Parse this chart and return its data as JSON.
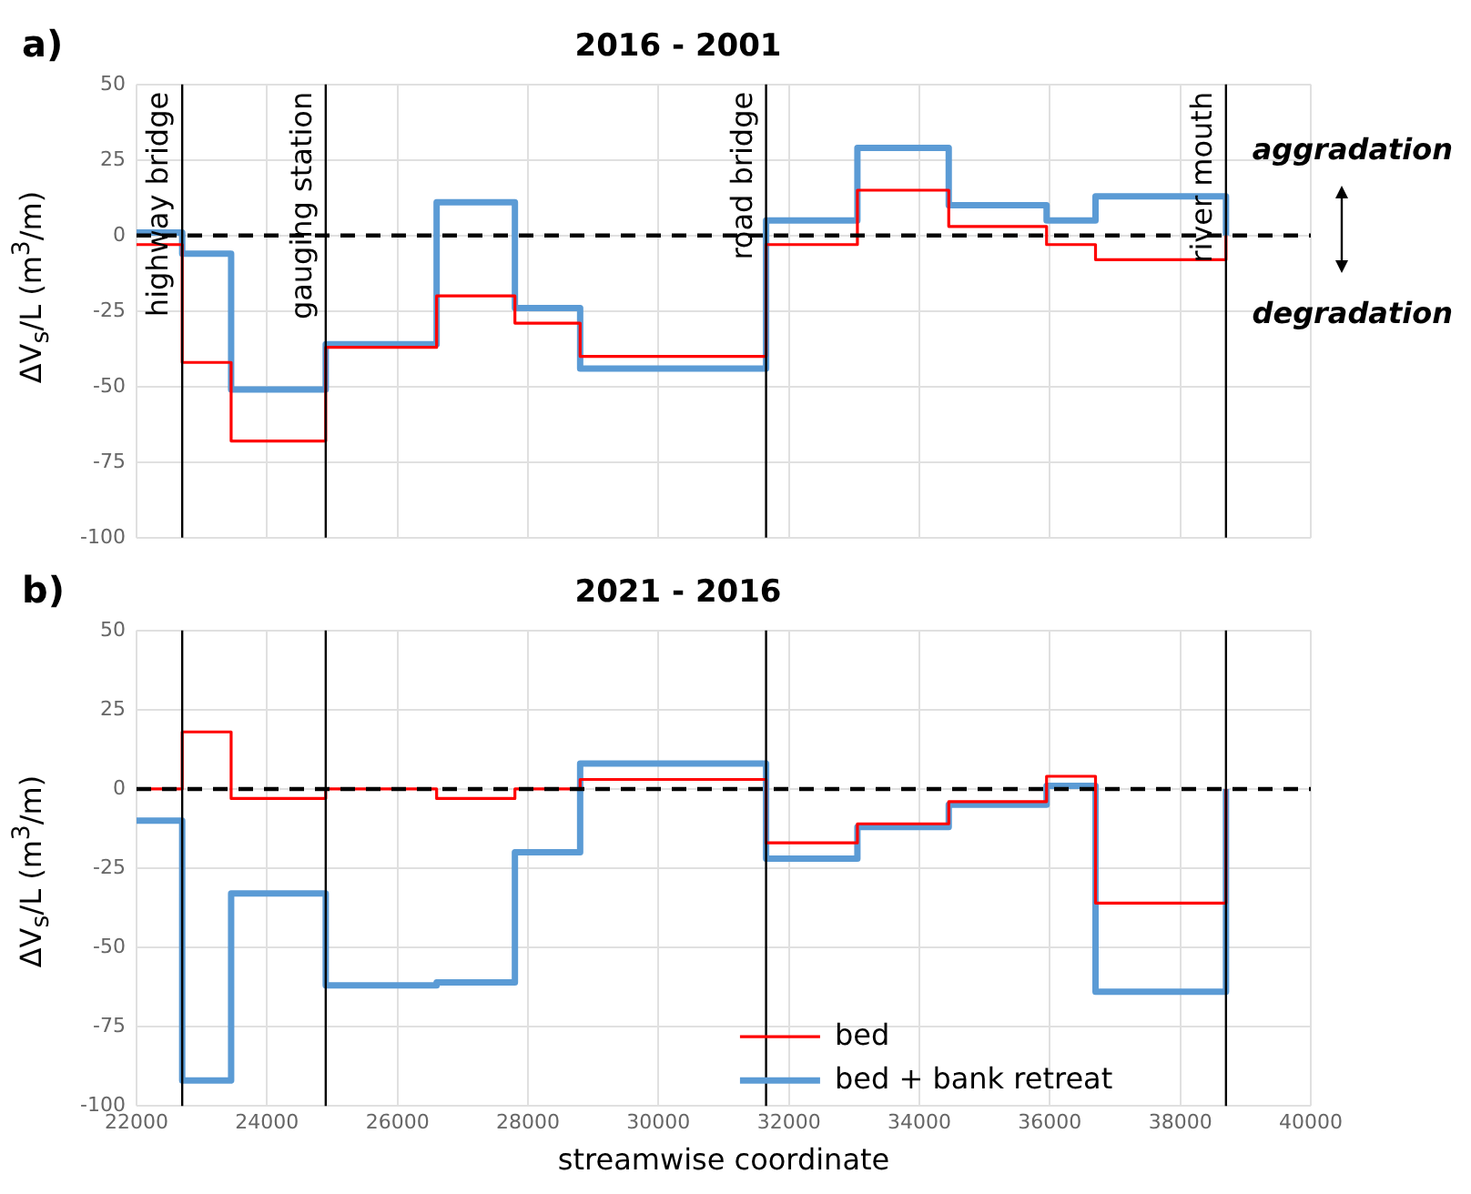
{
  "chart_data": [
    {
      "type": "step",
      "title": "2016 - 2001",
      "ylabel": "ΔV$_{s}$/L (m$^{3}$/m)",
      "annotations": [
        "a)",
        "aggradation",
        "degradation"
      ],
      "xlim": [
        22000,
        40000
      ],
      "xticks": [
        22000,
        24000,
        26000,
        28000,
        30000,
        32000,
        34000,
        36000,
        38000,
        40000
      ],
      "ylim": [
        -100,
        50
      ],
      "yticks": [
        -100,
        -75,
        -50,
        -25,
        0,
        25,
        50
      ],
      "tick_labels": "y",
      "grid": true,
      "legend": false,
      "series": [
        {
          "color": "#ff0000",
          "x": [
            22000,
            22700,
            23450,
            24900,
            26600,
            27800,
            28800,
            31650,
            33050,
            34450,
            35950,
            36700,
            38700
          ],
          "values": [
            -3,
            -42,
            -68,
            -37,
            -20,
            -29,
            -40,
            -3,
            15,
            3,
            -3,
            -8,
            0
          ]
        },
        {
          "color": "#5b9bd5",
          "x": [
            22000,
            22700,
            23450,
            24900,
            26600,
            27800,
            28800,
            31650,
            33050,
            34450,
            35950,
            36700,
            38700
          ],
          "values": [
            1,
            -6,
            -51,
            -36,
            11,
            -24,
            -44,
            5,
            29,
            10,
            5,
            13,
            0
          ]
        }
      ],
      "ref_lines": [
        {
          "axis": "x",
          "value": 22700,
          "label": "highway bridge",
          "color": "#000000"
        },
        {
          "axis": "x",
          "value": 24900,
          "label": "gauging station",
          "color": "#000000"
        },
        {
          "axis": "x",
          "value": 31650,
          "label": "road bridge",
          "color": "#000000"
        },
        {
          "axis": "x",
          "value": 38700,
          "label": "river mouth",
          "color": "#000000"
        },
        {
          "axis": "y",
          "value": 0,
          "color": "#000000",
          "line_style": "dashed"
        }
      ]
    },
    {
      "type": "step",
      "title": "2021 - 2016",
      "xlabel": "streamwise coordinate",
      "ylabel": "ΔV$_{s}$/L (m$^{3}$/m)",
      "annotations": [
        "b)"
      ],
      "xlim": [
        22000,
        40000
      ],
      "xticks": [
        22000,
        24000,
        26000,
        28000,
        30000,
        32000,
        34000,
        36000,
        38000,
        40000
      ],
      "ylim": [
        -100,
        50
      ],
      "yticks": [
        -100,
        -75,
        -50,
        -25,
        0,
        25,
        50
      ],
      "grid": true,
      "legend": "bottom",
      "series": [
        {
          "name": "bed",
          "color": "#ff0000",
          "x": [
            22000,
            22700,
            23450,
            24900,
            26600,
            27800,
            28800,
            31650,
            33050,
            34450,
            35950,
            36700,
            38700
          ],
          "values": [
            0,
            18,
            -3,
            0,
            -3,
            0,
            3,
            -17,
            -11,
            -4,
            4,
            -36,
            0
          ]
        },
        {
          "name": "bed + bank retreat",
          "color": "#5b9bd5",
          "x": [
            22000,
            22700,
            23450,
            24900,
            26600,
            27800,
            28800,
            31650,
            33050,
            34450,
            35950,
            36700,
            38700
          ],
          "values": [
            -10,
            -92,
            -33,
            -62,
            -61,
            -20,
            8,
            -22,
            -12,
            -5,
            1,
            -64,
            0
          ]
        }
      ],
      "ref_lines": [
        {
          "axis": "x",
          "value": 22700,
          "color": "#000000"
        },
        {
          "axis": "x",
          "value": 24900,
          "color": "#000000"
        },
        {
          "axis": "x",
          "value": 31650,
          "color": "#000000"
        },
        {
          "axis": "x",
          "value": 38700,
          "color": "#000000"
        },
        {
          "axis": "y",
          "value": 0,
          "color": "#000000",
          "line_style": "dashed"
        }
      ]
    }
  ]
}
